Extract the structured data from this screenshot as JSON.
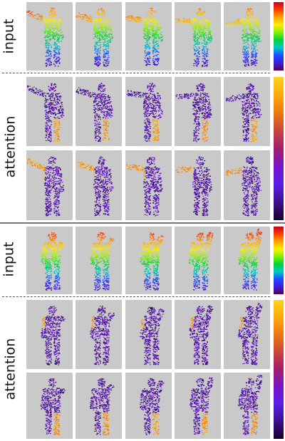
{
  "sections": [
    {
      "id": "s1-input",
      "label": "input",
      "cmap": "rainbow",
      "rows": 1
    },
    {
      "id": "s1-attn",
      "label": "attention",
      "cmap": "plasma",
      "rows": 2
    },
    {
      "id": "s2-input",
      "label": "input",
      "cmap": "rainbow",
      "rows": 1
    },
    {
      "id": "s2-attn",
      "label": "attention",
      "cmap": "plasma",
      "rows": 2
    }
  ],
  "colors": {
    "panel_bg": "#c9c9c9",
    "rainbow": [
      "#c8001e",
      "#ff3d00",
      "#ffa600",
      "#ffee00",
      "#7ef000",
      "#00d23c",
      "#00c8c8",
      "#1e4bff",
      "#3c1edc",
      "#500050"
    ],
    "plasma": [
      "#ffd21e",
      "#ffaa0a",
      "#eb7814",
      "#c8463c",
      "#a01e6e",
      "#7814c8",
      "#5a1ee6",
      "#3c0f8c",
      "#140028"
    ]
  },
  "columns": 5
}
